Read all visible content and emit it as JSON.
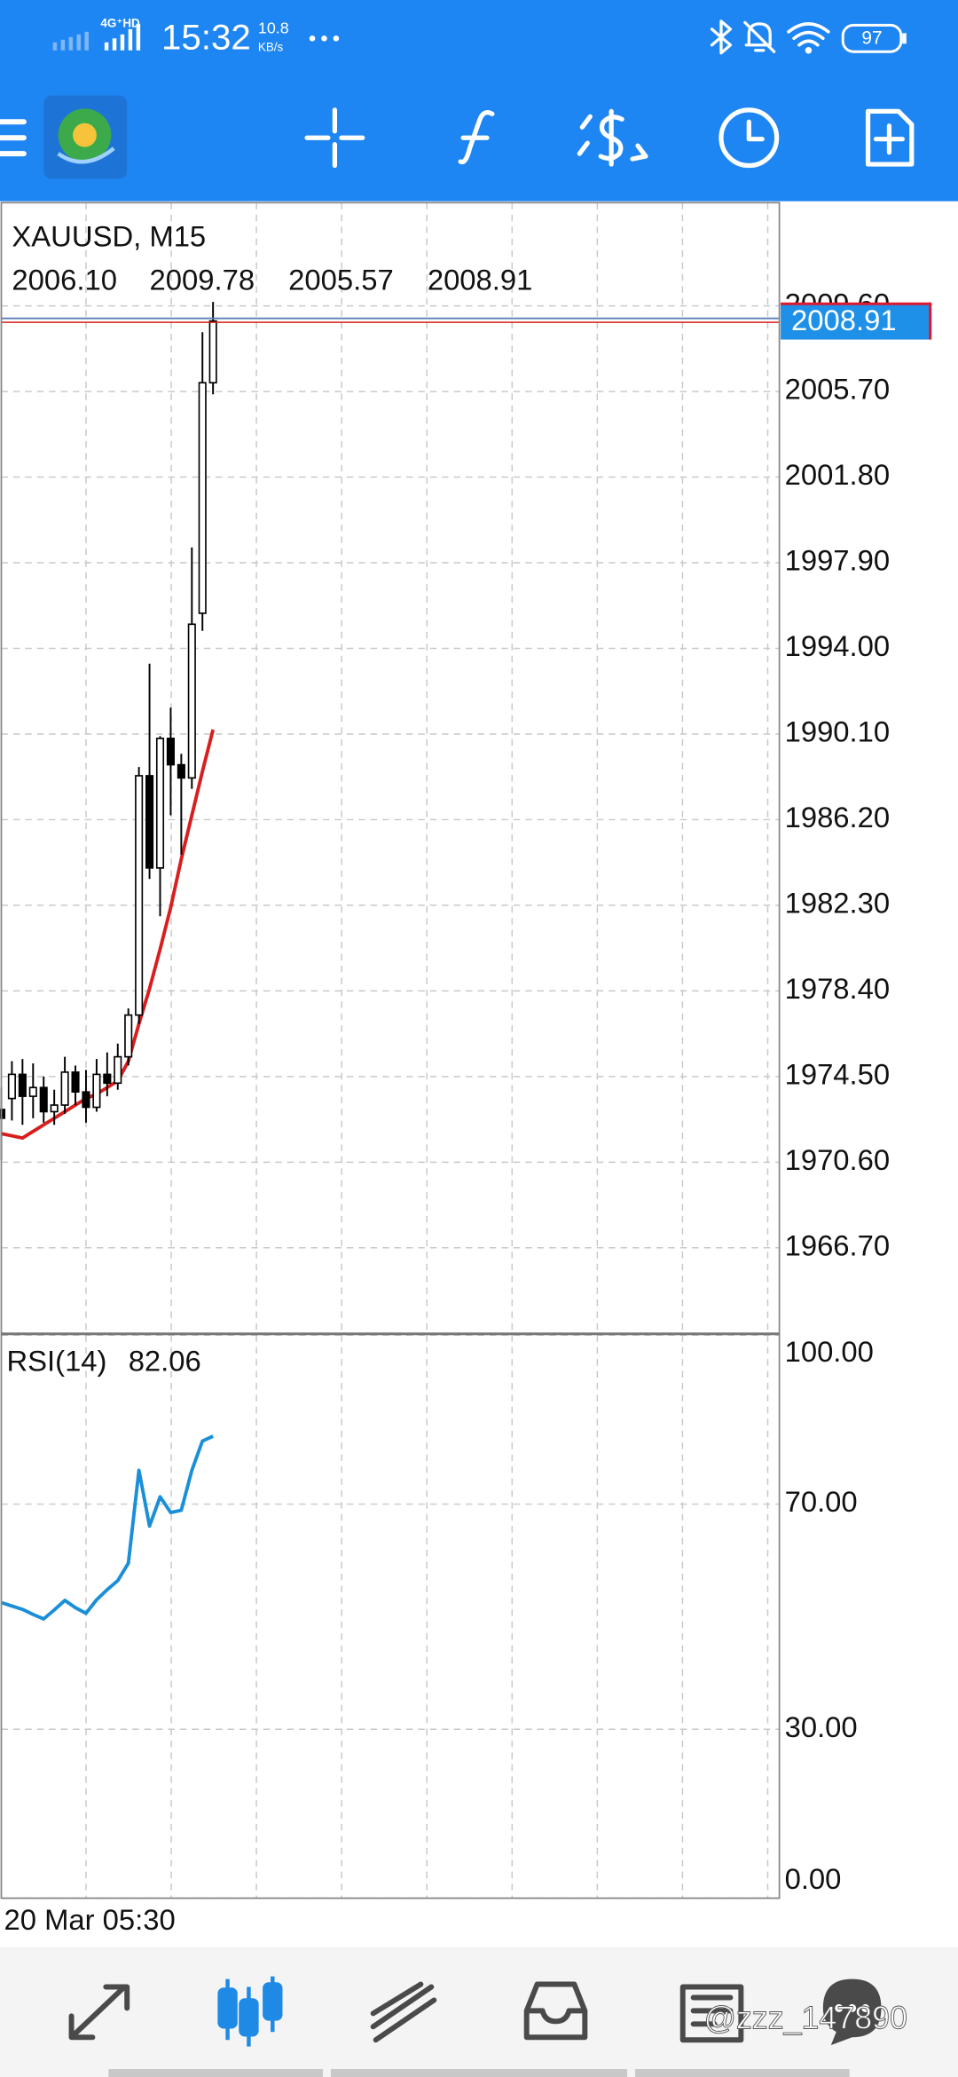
{
  "status_bar": {
    "network": "4G⁺HD",
    "time": "15:32",
    "speed": "10.8",
    "speed_unit": "KB/s",
    "battery": "97"
  },
  "chart_data": [
    {
      "type": "candlestick",
      "title": "XAUUSD, M15",
      "ohlc_header": [
        "2006.10",
        "2009.78",
        "2005.57",
        "2008.91"
      ],
      "open": [
        1973.0,
        1973.5,
        1974.6,
        1973.6,
        1974.0,
        1972.9,
        1973.2,
        1974.7,
        1973.8,
        1973.1,
        1974.6,
        1974.2,
        1975.4,
        1977.3,
        1988.2,
        1984.0,
        1989.9,
        1988.7,
        1988.1,
        1995.6,
        2006.1
      ],
      "high": [
        1974.0,
        1975.2,
        1975.3,
        1975.1,
        1974.5,
        1973.9,
        1975.4,
        1975.0,
        1974.8,
        1975.3,
        1975.6,
        1976.0,
        1977.6,
        1988.6,
        1993.3,
        1990.0,
        1991.3,
        1989.2,
        1998.6,
        2008.4,
        2009.78
      ],
      "low": [
        1970.7,
        1972.5,
        1972.3,
        1972.6,
        1972.4,
        1972.3,
        1972.8,
        1973.2,
        1972.4,
        1972.9,
        1973.6,
        1973.9,
        1975.0,
        1976.9,
        1983.5,
        1981.8,
        1986.4,
        1984.6,
        1987.6,
        1994.8,
        2005.57
      ],
      "close": [
        1972.6,
        1974.6,
        1973.6,
        1974.0,
        1972.9,
        1973.2,
        1974.7,
        1973.8,
        1973.1,
        1974.6,
        1974.2,
        1975.4,
        1977.3,
        1988.2,
        1984.0,
        1989.9,
        1988.7,
        1988.1,
        1995.1,
        2006.1,
        2008.91
      ],
      "candle_color": "#000000",
      "series": [
        {
          "color": "#d81e1e",
          "values": [
            1971.9,
            1971.8,
            1971.7,
            1972.0,
            1972.3,
            1972.6,
            1972.9,
            1973.2,
            1973.5,
            1973.7,
            1974.0,
            1974.3,
            1975.2,
            1976.9,
            1978.5,
            1980.3,
            1982.2,
            1984.4,
            1986.4,
            1988.4,
            1990.3
          ]
        }
      ],
      "current_price_label": "2008.91",
      "x_label": "20 Mar 05:30",
      "ylim": [
        1962.9,
        2014.3
      ],
      "yticks": [
        {
          "value": 2009.6,
          "label": "2009.60"
        },
        {
          "value": 2005.7,
          "label": "2005.70"
        },
        {
          "value": 2001.8,
          "label": "2001.80"
        },
        {
          "value": 1997.9,
          "label": "1997.90"
        },
        {
          "value": 1994.0,
          "label": "1994.00"
        },
        {
          "value": 1990.1,
          "label": "1990.10"
        },
        {
          "value": 1986.2,
          "label": "1986.20"
        },
        {
          "value": 1982.3,
          "label": "1982.30"
        },
        {
          "value": 1978.4,
          "label": "1978.40"
        },
        {
          "value": 1974.5,
          "label": "1974.50"
        },
        {
          "value": 1970.6,
          "label": "1970.60"
        },
        {
          "value": 1966.7,
          "label": "1966.70"
        }
      ],
      "grid": true
    },
    {
      "type": "line",
      "title": "RSI(14)",
      "series": [
        {
          "color": "#1a8fd8",
          "values": [
            52.5,
            51.9,
            51.3,
            50.4,
            49.6,
            51.2,
            52.9,
            51.6,
            50.6,
            53.0,
            54.8,
            56.4,
            59.5,
            76.0,
            66.1,
            71.3,
            68.5,
            68.9,
            76.0,
            81.2,
            82.06
          ]
        }
      ],
      "ylim": [
        0,
        100
      ],
      "yticks": [
        {
          "value": 100,
          "label": "100.00"
        },
        {
          "value": 70,
          "label": "70.00"
        },
        {
          "value": 30,
          "label": "30.00"
        },
        {
          "value": 0,
          "label": "0.00"
        }
      ],
      "grid": true
    }
  ],
  "watermark": "@zzz_147890"
}
